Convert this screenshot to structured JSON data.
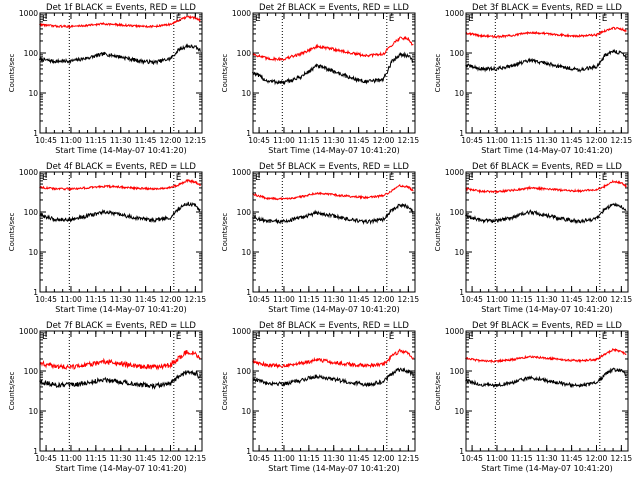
{
  "chart_data": [
    {
      "type": "line",
      "title": "Det 1f BLACK = Events, RED = LLD",
      "ylabel": "Counts/sec",
      "xlabel": "Start Time (14-May-07 10:41:20)",
      "yscale": "log",
      "ylim": [
        1,
        1000
      ],
      "xticks": [
        "10:45",
        "11:00",
        "11:15",
        "11:30",
        "11:45",
        "12:00",
        "12:15"
      ],
      "yticks": [
        "1",
        "10",
        "100",
        "1000"
      ],
      "markers": [
        "E",
        "E"
      ],
      "vlines": [
        "10:59",
        "12:02"
      ],
      "series": [
        {
          "name": "BLACK = Events",
          "color": "#000000",
          "noise": 0.045,
          "x": [
            "10:41",
            "10:50",
            "11:00",
            "11:10",
            "11:20",
            "11:30",
            "11:40",
            "11:50",
            "12:00",
            "12:05",
            "12:10",
            "12:15",
            "12:18"
          ],
          "y": [
            70,
            62,
            63,
            75,
            95,
            80,
            65,
            58,
            72,
            120,
            150,
            140,
            115
          ]
        },
        {
          "name": "RED = LLD",
          "color": "#ff0000",
          "noise": 0.025,
          "x": [
            "10:41",
            "10:50",
            "11:00",
            "11:10",
            "11:20",
            "11:30",
            "11:40",
            "11:50",
            "12:00",
            "12:05",
            "12:10",
            "12:15",
            "12:18"
          ],
          "y": [
            520,
            470,
            460,
            490,
            540,
            500,
            470,
            460,
            520,
            650,
            800,
            750,
            650
          ]
        }
      ]
    },
    {
      "type": "line",
      "title": "Det 2f BLACK = Events, RED = LLD",
      "ylabel": "Counts/sec",
      "xlabel": "Start Time (14-May-07 10:41:20)",
      "yscale": "log",
      "ylim": [
        1,
        1000
      ],
      "xticks": [
        "10:45",
        "11:00",
        "11:15",
        "11:30",
        "11:45",
        "12:00",
        "12:15"
      ],
      "yticks": [
        "1",
        "10",
        "100",
        "1000"
      ],
      "markers": [
        "E",
        "E"
      ],
      "vlines": [
        "10:59",
        "12:02"
      ],
      "series": [
        {
          "name": "BLACK = Events",
          "color": "#000000",
          "noise": 0.05,
          "x": [
            "10:41",
            "10:50",
            "11:00",
            "11:10",
            "11:20",
            "11:30",
            "11:40",
            "11:50",
            "12:00",
            "12:05",
            "12:10",
            "12:15",
            "12:18"
          ],
          "y": [
            33,
            20,
            18,
            25,
            48,
            35,
            24,
            19,
            22,
            60,
            95,
            85,
            60
          ]
        },
        {
          "name": "RED = LLD",
          "color": "#ff0000",
          "noise": 0.035,
          "x": [
            "10:41",
            "10:50",
            "11:00",
            "11:10",
            "11:20",
            "11:30",
            "11:40",
            "11:50",
            "12:00",
            "12:05",
            "12:10",
            "12:15",
            "12:18"
          ],
          "y": [
            95,
            72,
            70,
            95,
            145,
            125,
            100,
            85,
            95,
            160,
            240,
            230,
            150
          ]
        }
      ]
    },
    {
      "type": "line",
      "title": "Det 3f BLACK = Events, RED = LLD",
      "ylabel": "Counts/sec",
      "xlabel": "Start Time (14-May-07 10:41:20)",
      "yscale": "log",
      "ylim": [
        1,
        1000
      ],
      "xticks": [
        "10:45",
        "11:00",
        "11:15",
        "11:30",
        "11:45",
        "12:00",
        "12:15"
      ],
      "yticks": [
        "1",
        "10",
        "100",
        "1000"
      ],
      "markers": [
        "E",
        "E"
      ],
      "vlines": [
        "10:59",
        "12:02"
      ],
      "series": [
        {
          "name": "BLACK = Events",
          "color": "#000000",
          "noise": 0.045,
          "x": [
            "10:41",
            "10:50",
            "11:00",
            "11:10",
            "11:20",
            "11:30",
            "11:40",
            "11:50",
            "12:00",
            "12:05",
            "12:10",
            "12:15",
            "12:18"
          ],
          "y": [
            50,
            40,
            40,
            50,
            65,
            55,
            44,
            38,
            45,
            85,
            110,
            100,
            80
          ]
        },
        {
          "name": "RED = LLD",
          "color": "#ff0000",
          "noise": 0.025,
          "x": [
            "10:41",
            "10:50",
            "11:00",
            "11:10",
            "11:20",
            "11:30",
            "11:40",
            "11:50",
            "12:00",
            "12:05",
            "12:10",
            "12:15",
            "12:18"
          ],
          "y": [
            320,
            270,
            255,
            275,
            330,
            305,
            280,
            265,
            285,
            360,
            420,
            400,
            350
          ]
        }
      ]
    },
    {
      "type": "line",
      "title": "Det 4f BLACK = Events, RED = LLD",
      "ylabel": "Counts/sec",
      "xlabel": "Start Time (14-May-07 10:41:20)",
      "yscale": "log",
      "ylim": [
        1,
        1000
      ],
      "xticks": [
        "10:45",
        "11:00",
        "11:15",
        "11:30",
        "11:45",
        "12:00",
        "12:15"
      ],
      "yticks": [
        "1",
        "10",
        "100",
        "1000"
      ],
      "markers": [
        "E",
        "E"
      ],
      "vlines": [
        "10:59",
        "12:02"
      ],
      "series": [
        {
          "name": "BLACK = Events",
          "color": "#000000",
          "noise": 0.045,
          "x": [
            "10:41",
            "10:50",
            "11:00",
            "11:10",
            "11:20",
            "11:30",
            "11:40",
            "11:50",
            "12:00",
            "12:05",
            "12:10",
            "12:15",
            "12:18"
          ],
          "y": [
            85,
            65,
            65,
            80,
            100,
            85,
            70,
            62,
            72,
            120,
            165,
            145,
            110
          ]
        },
        {
          "name": "RED = LLD",
          "color": "#ff0000",
          "noise": 0.025,
          "x": [
            "10:41",
            "10:50",
            "11:00",
            "11:10",
            "11:20",
            "11:30",
            "11:40",
            "11:50",
            "12:00",
            "12:05",
            "12:10",
            "12:15",
            "12:18"
          ],
          "y": [
            420,
            380,
            380,
            400,
            440,
            420,
            390,
            380,
            410,
            480,
            610,
            560,
            470
          ]
        }
      ]
    },
    {
      "type": "line",
      "title": "Det 5f BLACK = Events, RED = LLD",
      "ylabel": "Counts/sec",
      "xlabel": "Start Time (14-May-07 10:41:20)",
      "yscale": "log",
      "ylim": [
        1,
        1000
      ],
      "xticks": [
        "10:45",
        "11:00",
        "11:15",
        "11:30",
        "11:45",
        "12:00",
        "12:15"
      ],
      "yticks": [
        "1",
        "10",
        "100",
        "1000"
      ],
      "markers": [
        "E",
        "E"
      ],
      "vlines": [
        "10:59",
        "12:02"
      ],
      "series": [
        {
          "name": "BLACK = Events",
          "color": "#000000",
          "noise": 0.045,
          "x": [
            "10:41",
            "10:50",
            "11:00",
            "11:10",
            "11:20",
            "11:30",
            "11:40",
            "11:50",
            "12:00",
            "12:05",
            "12:10",
            "12:15",
            "12:18"
          ],
          "y": [
            75,
            58,
            58,
            72,
            95,
            80,
            64,
            56,
            66,
            110,
            150,
            135,
            100
          ]
        },
        {
          "name": "RED = LLD",
          "color": "#ff0000",
          "noise": 0.025,
          "x": [
            "10:41",
            "10:50",
            "11:00",
            "11:10",
            "11:20",
            "11:30",
            "11:40",
            "11:50",
            "12:00",
            "12:05",
            "12:10",
            "12:15",
            "12:18"
          ],
          "y": [
            280,
            220,
            210,
            240,
            300,
            270,
            245,
            230,
            255,
            340,
            460,
            420,
            340
          ]
        }
      ]
    },
    {
      "type": "line",
      "title": "Det 6f BLACK = Events, RED = LLD",
      "ylabel": "Counts/sec",
      "xlabel": "Start Time (14-May-07 10:41:20)",
      "yscale": "log",
      "ylim": [
        1,
        1000
      ],
      "xticks": [
        "10:45",
        "11:00",
        "11:15",
        "11:30",
        "11:45",
        "12:00",
        "12:15"
      ],
      "yticks": [
        "1",
        "10",
        "100",
        "1000"
      ],
      "markers": [
        "E",
        "E"
      ],
      "vlines": [
        "10:59",
        "12:02"
      ],
      "series": [
        {
          "name": "BLACK = Events",
          "color": "#000000",
          "noise": 0.045,
          "x": [
            "10:41",
            "10:50",
            "11:00",
            "11:10",
            "11:20",
            "11:30",
            "11:40",
            "11:50",
            "12:00",
            "12:05",
            "12:10",
            "12:15",
            "12:18"
          ],
          "y": [
            80,
            62,
            60,
            75,
            100,
            82,
            66,
            58,
            68,
            115,
            160,
            140,
            100
          ]
        },
        {
          "name": "RED = LLD",
          "color": "#ff0000",
          "noise": 0.025,
          "x": [
            "10:41",
            "10:50",
            "11:00",
            "11:10",
            "11:20",
            "11:30",
            "11:40",
            "11:50",
            "12:00",
            "12:05",
            "12:10",
            "12:15",
            "12:18"
          ],
          "y": [
            380,
            330,
            320,
            350,
            400,
            380,
            350,
            335,
            360,
            440,
            580,
            540,
            430
          ]
        }
      ]
    },
    {
      "type": "line",
      "title": "Det 7f BLACK = Events, RED = LLD",
      "ylabel": "Counts/sec",
      "xlabel": "Start Time (14-May-07 10:41:20)",
      "yscale": "log",
      "ylim": [
        1,
        1000
      ],
      "xticks": [
        "10:45",
        "11:00",
        "11:15",
        "11:30",
        "11:45",
        "12:00",
        "12:15"
      ],
      "yticks": [
        "1",
        "10",
        "100",
        "1000"
      ],
      "markers": [
        "E",
        "E"
      ],
      "vlines": [
        "10:59",
        "12:02"
      ],
      "series": [
        {
          "name": "BLACK = Events",
          "color": "#000000",
          "noise": 0.06,
          "x": [
            "10:41",
            "10:50",
            "11:00",
            "11:10",
            "11:20",
            "11:30",
            "11:40",
            "11:50",
            "12:00",
            "12:05",
            "12:10",
            "12:15",
            "12:18"
          ],
          "y": [
            55,
            45,
            44,
            50,
            62,
            54,
            46,
            42,
            48,
            72,
            95,
            88,
            70
          ]
        },
        {
          "name": "RED = LLD",
          "color": "#ff0000",
          "noise": 0.06,
          "x": [
            "10:41",
            "10:50",
            "11:00",
            "11:10",
            "11:20",
            "11:30",
            "11:40",
            "11:50",
            "12:00",
            "12:05",
            "12:10",
            "12:15",
            "12:18"
          ],
          "y": [
            160,
            130,
            125,
            140,
            175,
            150,
            132,
            125,
            140,
            210,
            300,
            270,
            200
          ]
        }
      ]
    },
    {
      "type": "line",
      "title": "Det 8f BLACK = Events, RED = LLD",
      "ylabel": "Counts/sec",
      "xlabel": "Start Time (14-May-07 10:41:20)",
      "yscale": "log",
      "ylim": [
        1,
        1000
      ],
      "xticks": [
        "10:45",
        "11:00",
        "11:15",
        "11:30",
        "11:45",
        "12:00",
        "12:15"
      ],
      "yticks": [
        "1",
        "10",
        "100",
        "1000"
      ],
      "markers": [
        "E",
        "E"
      ],
      "vlines": [
        "10:59",
        "12:02"
      ],
      "series": [
        {
          "name": "BLACK = Events",
          "color": "#000000",
          "noise": 0.05,
          "x": [
            "10:41",
            "10:50",
            "11:00",
            "11:10",
            "11:20",
            "11:30",
            "11:40",
            "11:50",
            "12:00",
            "12:05",
            "12:10",
            "12:15",
            "12:18"
          ],
          "y": [
            65,
            50,
            48,
            58,
            75,
            62,
            52,
            46,
            54,
            85,
            110,
            100,
            80
          ]
        },
        {
          "name": "RED = LLD",
          "color": "#ff0000",
          "noise": 0.045,
          "x": [
            "10:41",
            "10:50",
            "11:00",
            "11:10",
            "11:20",
            "11:30",
            "11:40",
            "11:50",
            "12:00",
            "12:05",
            "12:10",
            "12:15",
            "12:18"
          ],
          "y": [
            175,
            140,
            135,
            155,
            190,
            165,
            145,
            135,
            150,
            230,
            320,
            290,
            210
          ]
        }
      ]
    },
    {
      "type": "line",
      "title": "Det 9f BLACK = Events, RED = LLD",
      "ylabel": "Counts/sec",
      "xlabel": "Start Time (14-May-07 10:41:20)",
      "yscale": "log",
      "ylim": [
        1,
        1000
      ],
      "xticks": [
        "10:45",
        "11:00",
        "11:15",
        "11:30",
        "11:45",
        "12:00",
        "12:15"
      ],
      "yticks": [
        "1",
        "10",
        "100",
        "1000"
      ],
      "markers": [
        "E",
        "E"
      ],
      "vlines": [
        "10:59",
        "12:02"
      ],
      "series": [
        {
          "name": "BLACK = Events",
          "color": "#000000",
          "noise": 0.045,
          "x": [
            "10:41",
            "10:50",
            "11:00",
            "11:10",
            "11:20",
            "11:30",
            "11:40",
            "11:50",
            "12:00",
            "12:05",
            "12:10",
            "12:15",
            "12:18"
          ],
          "y": [
            58,
            45,
            44,
            52,
            68,
            58,
            48,
            42,
            50,
            80,
            110,
            100,
            78
          ]
        },
        {
          "name": "RED = LLD",
          "color": "#ff0000",
          "noise": 0.025,
          "x": [
            "10:41",
            "10:50",
            "11:00",
            "11:10",
            "11:20",
            "11:30",
            "11:40",
            "11:50",
            "12:00",
            "12:05",
            "12:10",
            "12:15",
            "12:18"
          ],
          "y": [
            210,
            180,
            175,
            195,
            230,
            210,
            190,
            180,
            195,
            260,
            340,
            310,
            250
          ]
        }
      ]
    }
  ]
}
